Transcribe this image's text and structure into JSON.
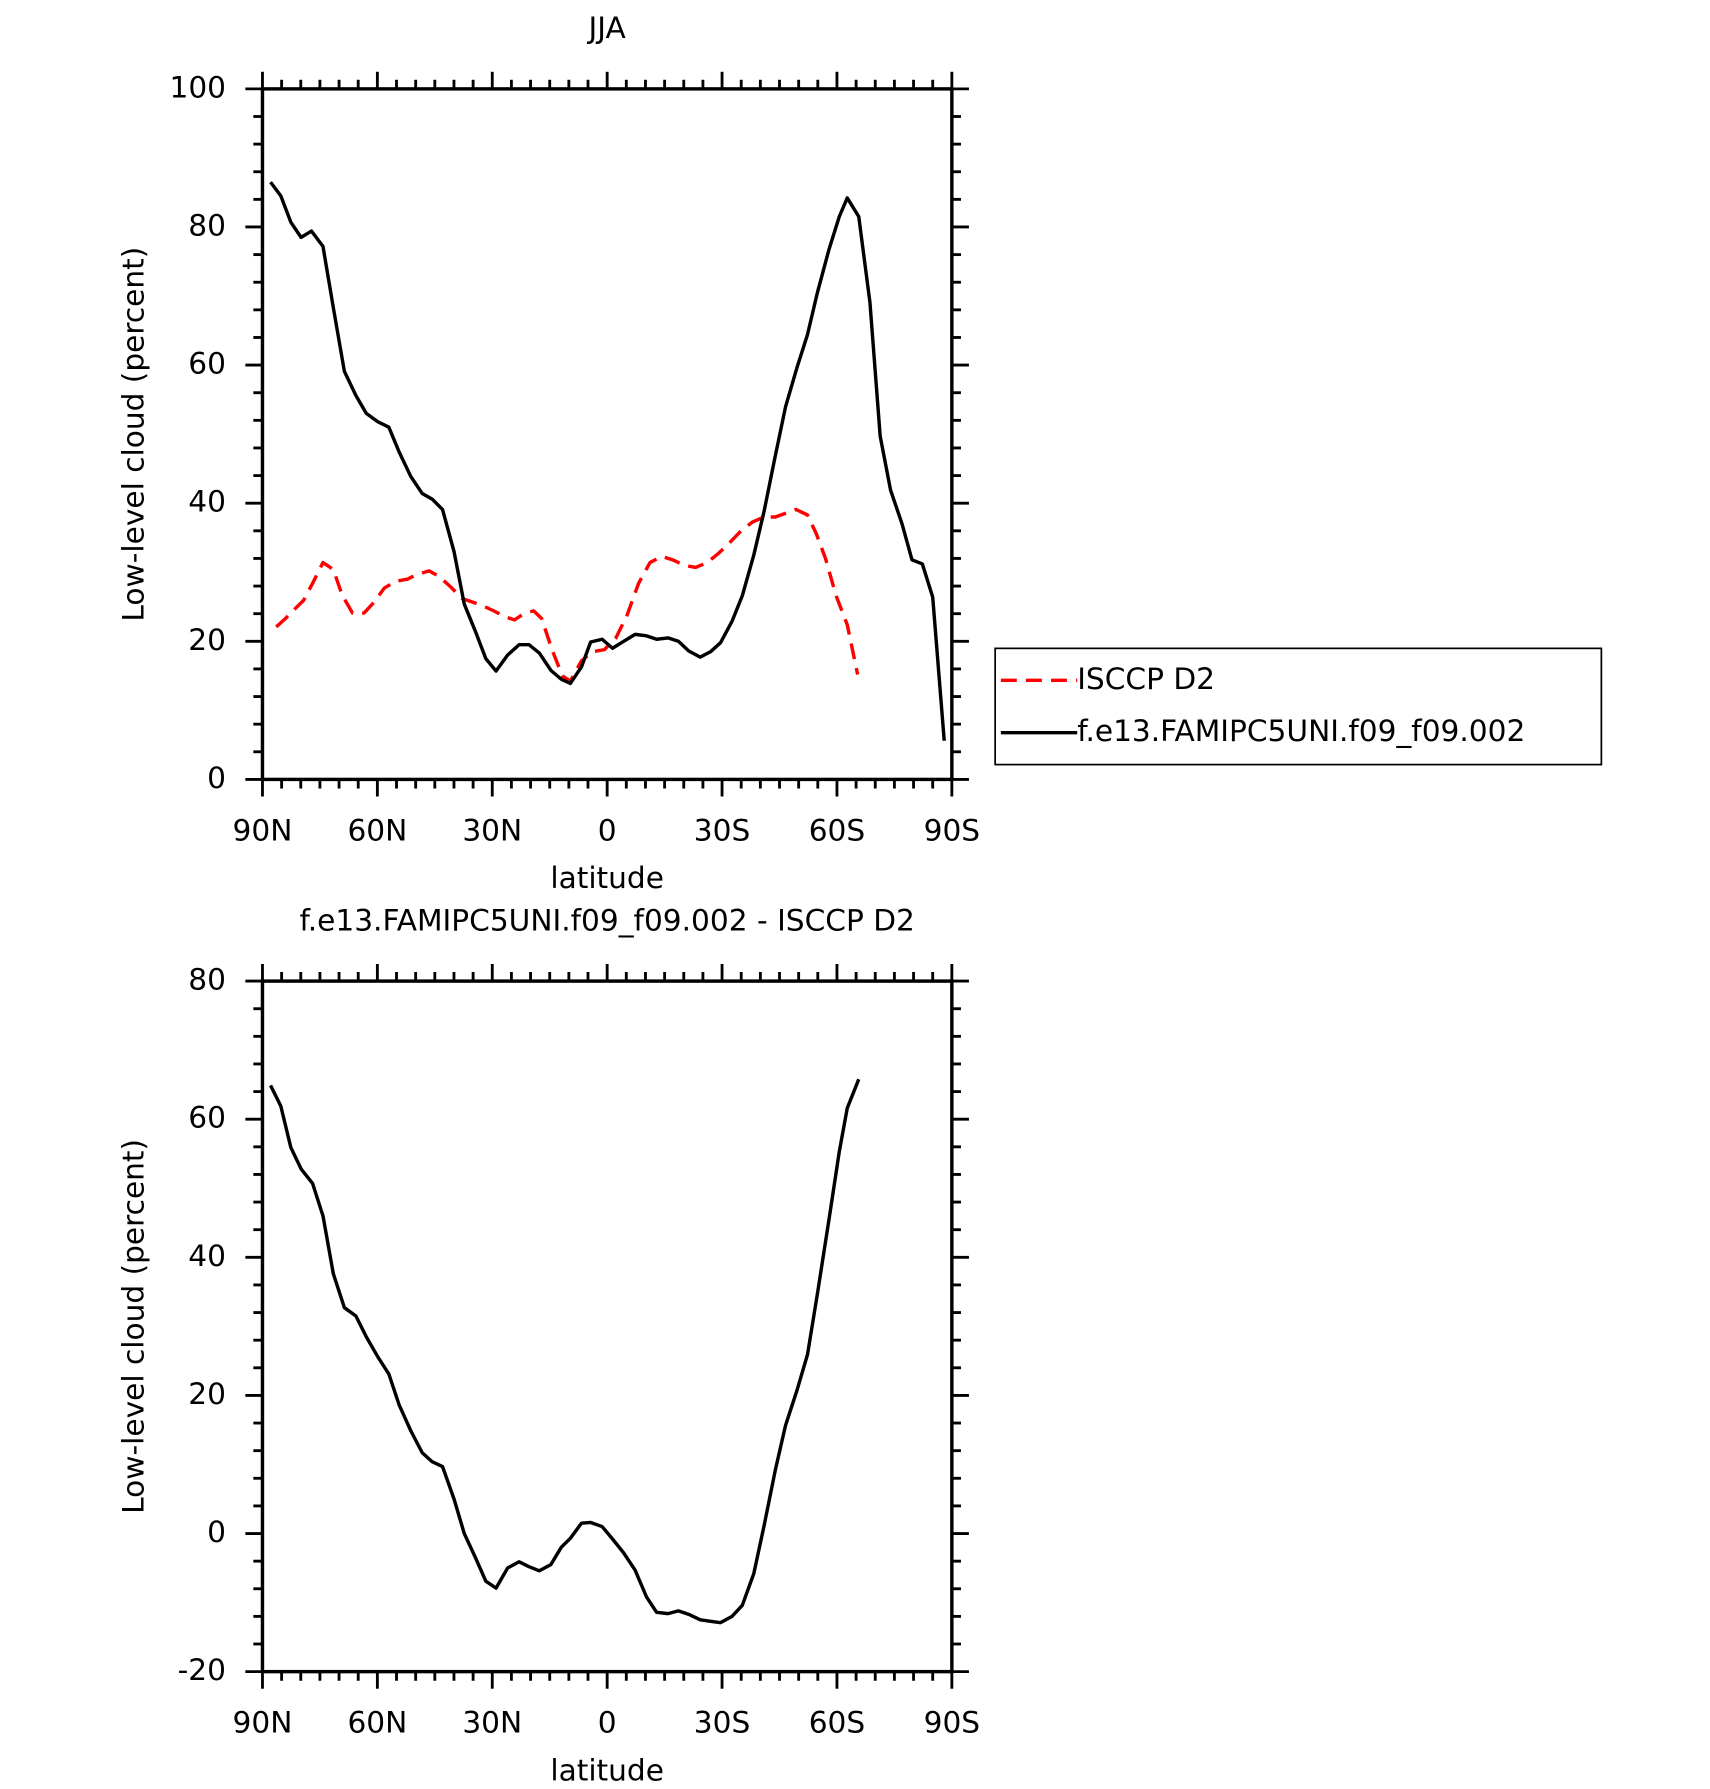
{
  "chart_data": [
    {
      "type": "line",
      "title": "JJA",
      "xlabel": "latitude",
      "ylabel": "Low-level cloud (percent)",
      "xlim": [
        90,
        -90
      ],
      "xticks": [
        {
          "value": 90,
          "label": "90N"
        },
        {
          "value": 60,
          "label": "60N"
        },
        {
          "value": 30,
          "label": "30N"
        },
        0,
        {
          "value": -30,
          "label": "30S"
        },
        {
          "value": -60,
          "label": "60S"
        },
        {
          "value": -90,
          "label": "90S"
        }
      ],
      "ylim": [
        0,
        100
      ],
      "yticks": [
        0,
        20,
        40,
        60,
        80,
        100
      ],
      "legend": "right",
      "series": [
        {
          "name": "ISCCP D2",
          "color": "#ff0000",
          "dashed": true,
          "x": [
            86.4,
            84,
            81.7,
            79.3,
            76.9,
            74.2,
            71.5,
            69.2,
            66.5,
            63.5,
            60.8,
            58.2,
            55.2,
            52.2,
            49.5,
            46.5,
            43.9,
            40.9,
            37.9,
            35.2,
            32.3,
            29.6,
            26.9,
            24.2,
            21.5,
            19.2,
            17.1,
            14.4,
            11.7,
            9.6,
            6.7,
            3.7,
            0.7,
            -2.3,
            -5.2,
            -8.2,
            -11.2,
            -14.2,
            -17.1,
            -20.1,
            -23.1,
            -26.1,
            -29,
            -32,
            -35,
            -38,
            -41,
            -43.9,
            -46.9,
            -49.3,
            -52.3,
            -54.6,
            -57,
            -59.7,
            -62.7,
            -65.4
          ],
          "values": [
            22.1,
            23.3,
            24.6,
            25.9,
            28.4,
            31.4,
            30.4,
            26.7,
            24.1,
            24.1,
            25.7,
            27.7,
            28.7,
            29,
            29.7,
            30.2,
            29.4,
            27.9,
            26.2,
            25.7,
            25.1,
            24.4,
            23.6,
            23.1,
            24.1,
            24.4,
            23.3,
            18.8,
            15,
            14.2,
            17.2,
            18.5,
            18.8,
            20.5,
            23.8,
            28.4,
            31.4,
            32.3,
            31.8,
            31,
            30.7,
            31.4,
            32.7,
            34.3,
            36,
            37.3,
            38,
            38,
            38.6,
            39.1,
            38.3,
            35.6,
            32,
            26.7,
            22.4,
            15.2
          ]
        },
        {
          "name": "f.e13.FAMIPC5UNI.f09_f09.002",
          "color": "#000000",
          "dashed": false,
          "x": [
            87.9,
            85.2,
            82.6,
            79.9,
            77.2,
            74.2,
            71.5,
            68.6,
            65.6,
            62.9,
            59.9,
            57,
            54.3,
            51.3,
            48.3,
            45.7,
            43,
            40,
            37.3,
            34.3,
            31.7,
            29,
            26,
            23,
            20.4,
            17.7,
            14.7,
            12,
            9.6,
            6.7,
            4.3,
            1.3,
            -1.4,
            -4.3,
            -7.3,
            -10.3,
            -12.9,
            -15.9,
            -18.6,
            -21.3,
            -24.3,
            -27,
            -29.6,
            -32.6,
            -35.3,
            -38.3,
            -41,
            -43.9,
            -46.6,
            -49.6,
            -52.3,
            -54.9,
            -57.9,
            -60.6,
            -62.7,
            -65.7,
            -68.6,
            -71.3,
            -74,
            -77,
            -79.6,
            -82.3,
            -85,
            -88
          ],
          "values": [
            86.5,
            84.5,
            80.7,
            78.5,
            79.4,
            77.2,
            68.3,
            59.1,
            55.6,
            53,
            51.8,
            51,
            47.4,
            43.9,
            41.4,
            40.6,
            39.1,
            33,
            25.4,
            21.3,
            17.5,
            15.7,
            18,
            19.5,
            19.5,
            18.3,
            15.8,
            14.5,
            13.9,
            16.3,
            19.9,
            20.3,
            19,
            20,
            21,
            20.8,
            20.3,
            20.5,
            20,
            18.6,
            17.7,
            18.5,
            19.8,
            22.9,
            26.6,
            32.5,
            38.9,
            46.9,
            54,
            59.7,
            64.4,
            70.5,
            76.7,
            81.5,
            84.2,
            81.5,
            69.1,
            49.7,
            41.9,
            37,
            31.8,
            31.2,
            26.4,
            5.6
          ]
        }
      ]
    },
    {
      "type": "line",
      "title": "f.e13.FAMIPC5UNI.f09_f09.002 - ISCCP D2",
      "xlabel": "latitude",
      "ylabel": "Low-level cloud (percent)",
      "xlim": [
        90,
        -90
      ],
      "xticks": [
        {
          "value": 90,
          "label": "90N"
        },
        {
          "value": 60,
          "label": "60N"
        },
        {
          "value": 30,
          "label": "30N"
        },
        0,
        {
          "value": -30,
          "label": "30S"
        },
        {
          "value": -60,
          "label": "60S"
        },
        {
          "value": -90,
          "label": "90S"
        }
      ],
      "ylim": [
        -20,
        80
      ],
      "yticks": [
        -20,
        0,
        20,
        40,
        60,
        80
      ],
      "series": [
        {
          "color": "#000000",
          "dashed": false,
          "x": [
            87.9,
            85.2,
            82.6,
            79.9,
            76.9,
            74.2,
            71.5,
            68.6,
            65.6,
            62.9,
            59.9,
            57,
            54.3,
            51.3,
            48.3,
            45.7,
            43,
            40,
            37.3,
            34.3,
            31.7,
            29,
            26,
            23,
            20.4,
            17.7,
            14.7,
            12,
            9.6,
            6.7,
            4.3,
            1.3,
            -1.4,
            -4.3,
            -7.3,
            -10.3,
            -12.9,
            -15.9,
            -18.6,
            -21.3,
            -24.3,
            -27,
            -29.6,
            -32.6,
            -35.3,
            -38.3,
            -41,
            -43.9,
            -46.6,
            -49.6,
            -52.3,
            -54.9,
            -57.9,
            -60.6,
            -62.7,
            -65.7
          ],
          "values": [
            64.9,
            61.9,
            55.9,
            52.8,
            50.7,
            46,
            37.6,
            32.7,
            31.5,
            28.5,
            25.6,
            23.1,
            18.6,
            14.9,
            11.7,
            10.4,
            9.7,
            5,
            0,
            -3.6,
            -6.9,
            -7.9,
            -5,
            -4.1,
            -4.8,
            -5.4,
            -4.5,
            -2,
            -0.7,
            1.5,
            1.6,
            1,
            -0.8,
            -2.8,
            -5.3,
            -9.2,
            -11.4,
            -11.6,
            -11.2,
            -11.7,
            -12.5,
            -12.7,
            -12.9,
            -12,
            -10.4,
            -5.8,
            1.2,
            9.2,
            15.7,
            20.8,
            25.9,
            34.7,
            45.4,
            55.3,
            61.6,
            65.8
          ]
        }
      ]
    }
  ]
}
